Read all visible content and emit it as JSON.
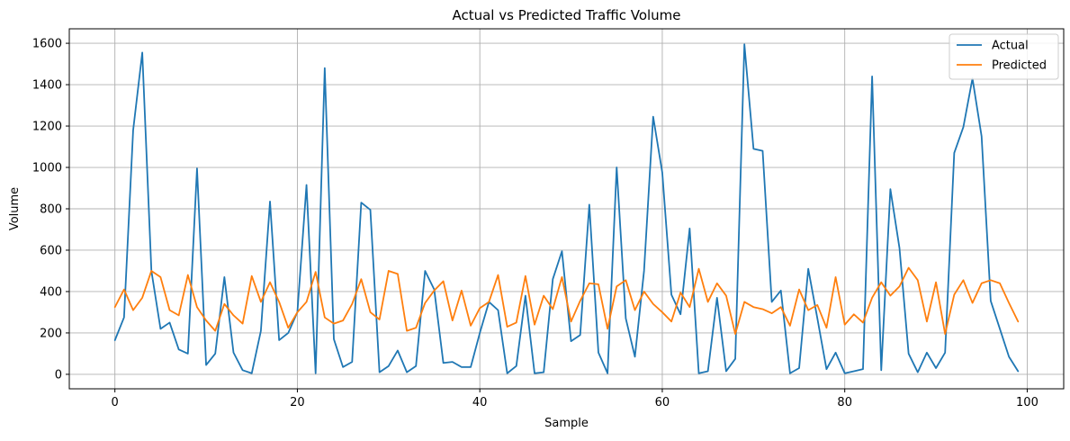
{
  "chart_data": {
    "type": "line",
    "title": "Actual vs Predicted Traffic Volume",
    "xlabel": "Sample",
    "ylabel": "Volume",
    "xlim": [
      -5,
      104
    ],
    "ylim": [
      -70,
      1670
    ],
    "xticks": [
      0,
      20,
      40,
      60,
      80,
      100
    ],
    "yticks": [
      0,
      200,
      400,
      600,
      800,
      1000,
      1200,
      1400,
      1600
    ],
    "grid": true,
    "legend_position": "top-right",
    "x": [
      0,
      1,
      2,
      3,
      4,
      5,
      6,
      7,
      8,
      9,
      10,
      11,
      12,
      13,
      14,
      15,
      16,
      17,
      18,
      19,
      20,
      21,
      22,
      23,
      24,
      25,
      26,
      27,
      28,
      29,
      30,
      31,
      32,
      33,
      34,
      35,
      36,
      37,
      38,
      39,
      40,
      41,
      42,
      43,
      44,
      45,
      46,
      47,
      48,
      49,
      50,
      51,
      52,
      53,
      54,
      55,
      56,
      57,
      58,
      59,
      60,
      61,
      62,
      63,
      64,
      65,
      66,
      67,
      68,
      69,
      70,
      71,
      72,
      73,
      74,
      75,
      76,
      77,
      78,
      79,
      80,
      81,
      82,
      83,
      84,
      85,
      86,
      87,
      88,
      89,
      90,
      91,
      92,
      93,
      94,
      95,
      96,
      97,
      98,
      99
    ],
    "series": [
      {
        "name": "Actual",
        "color": "#1f77b4",
        "values": [
          165,
          275,
          1180,
          1555,
          500,
          220,
          250,
          120,
          100,
          995,
          45,
          100,
          470,
          105,
          20,
          5,
          210,
          835,
          165,
          200,
          300,
          915,
          5,
          1480,
          170,
          35,
          60,
          830,
          795,
          10,
          40,
          115,
          10,
          40,
          500,
          410,
          55,
          60,
          35,
          35,
          200,
          350,
          310,
          5,
          40,
          380,
          5,
          10,
          460,
          595,
          160,
          190,
          820,
          105,
          5,
          1000,
          270,
          85,
          500,
          1245,
          975,
          385,
          290,
          705,
          5,
          15,
          370,
          15,
          75,
          1595,
          1090,
          1080,
          350,
          405,
          5,
          30,
          510,
          270,
          25,
          105,
          5,
          15,
          25,
          1440,
          20,
          895,
          610,
          100,
          10,
          105,
          30,
          105,
          1070,
          1195,
          1430,
          1150,
          355,
          220,
          85,
          15
        ]
      },
      {
        "name": "Predicted",
        "color": "#ff7f0e",
        "values": [
          325,
          410,
          310,
          370,
          500,
          470,
          310,
          285,
          480,
          325,
          260,
          210,
          340,
          285,
          245,
          475,
          350,
          445,
          350,
          225,
          300,
          350,
          495,
          275,
          245,
          260,
          340,
          460,
          300,
          265,
          500,
          485,
          210,
          225,
          345,
          405,
          450,
          260,
          405,
          235,
          320,
          350,
          480,
          230,
          250,
          475,
          240,
          380,
          315,
          470,
          255,
          355,
          440,
          435,
          220,
          425,
          455,
          310,
          400,
          340,
          300,
          255,
          395,
          325,
          510,
          350,
          440,
          380,
          195,
          350,
          325,
          315,
          295,
          325,
          235,
          410,
          310,
          335,
          225,
          470,
          240,
          290,
          250,
          370,
          445,
          380,
          425,
          515,
          455,
          255,
          445,
          195,
          385,
          455,
          345,
          440,
          455,
          440,
          345,
          255
        ]
      }
    ]
  }
}
